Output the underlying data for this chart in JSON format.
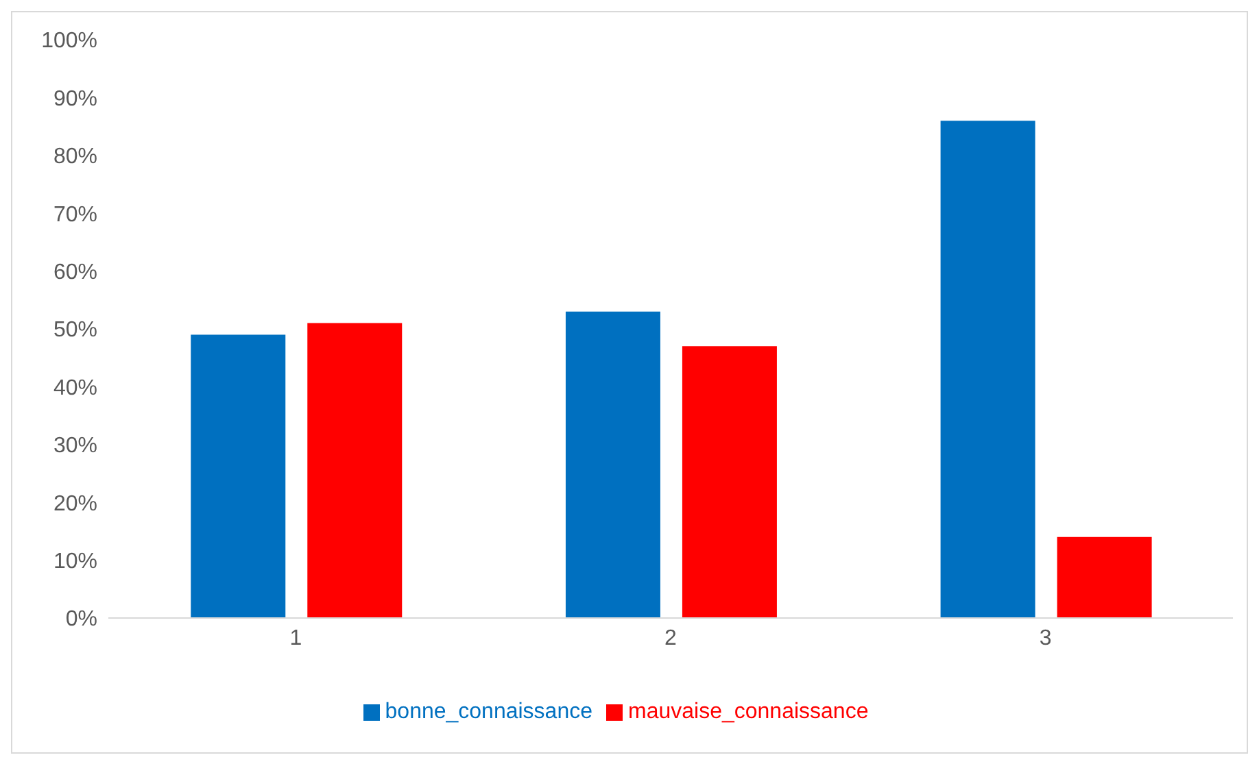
{
  "chart_data": {
    "type": "bar",
    "categories": [
      "1",
      "2",
      "3"
    ],
    "series": [
      {
        "name": "bonne_connaissance",
        "color": "#0070c0",
        "values": [
          49,
          53,
          86
        ]
      },
      {
        "name": "mauvaise_connaissance",
        "color": "#ff0000",
        "values": [
          51,
          47,
          14
        ]
      }
    ],
    "ylim": [
      0,
      100
    ],
    "yticks": [
      {
        "value": 0,
        "label": "0%"
      },
      {
        "value": 10,
        "label": "10%"
      },
      {
        "value": 20,
        "label": "20%"
      },
      {
        "value": 30,
        "label": "30%"
      },
      {
        "value": 40,
        "label": "40%"
      },
      {
        "value": 50,
        "label": "50%"
      },
      {
        "value": 60,
        "label": "60%"
      },
      {
        "value": 70,
        "label": "70%"
      },
      {
        "value": 80,
        "label": "80%"
      },
      {
        "value": 90,
        "label": "90%"
      },
      {
        "value": 100,
        "label": "100%"
      }
    ],
    "grid": false,
    "legend": "bottom"
  }
}
